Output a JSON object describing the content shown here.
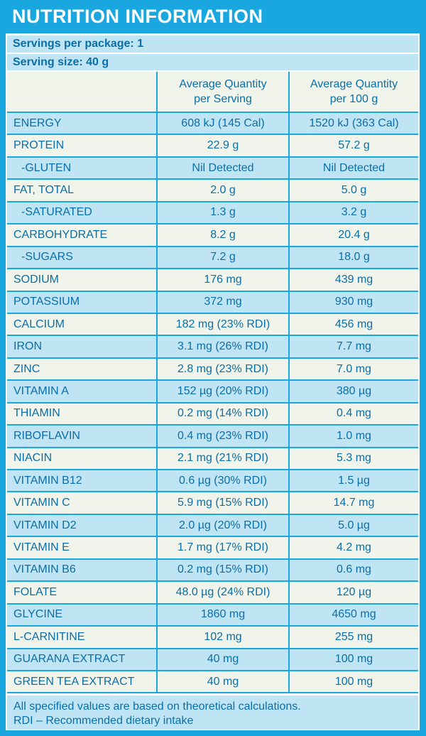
{
  "title": "NUTRITION INFORMATION",
  "servings_per_package": "Servings per package: 1",
  "serving_size": "Serving size: 40 g",
  "columns": {
    "per_serving_1": "Average Quantity",
    "per_serving_2": "per Serving",
    "per_100g_1": "Average Quantity",
    "per_100g_2": "per 100 g"
  },
  "rows": [
    {
      "name": "ENERGY",
      "per_serving": "608 kJ (145 Cal)",
      "per_100g": "1520 kJ (363 Cal)"
    },
    {
      "name": "PROTEIN",
      "per_serving": "22.9 g",
      "per_100g": "57.2 g"
    },
    {
      "name": "-GLUTEN",
      "per_serving": "Nil Detected",
      "per_100g": "Nil Detected",
      "sub": true
    },
    {
      "name": "FAT, TOTAL",
      "per_serving": "2.0 g",
      "per_100g": "5.0 g"
    },
    {
      "name": "-SATURATED",
      "per_serving": "1.3 g",
      "per_100g": "3.2 g",
      "sub": true
    },
    {
      "name": "CARBOHYDRATE",
      "per_serving": "8.2 g",
      "per_100g": "20.4 g"
    },
    {
      "name": "-SUGARS",
      "per_serving": "7.2 g",
      "per_100g": "18.0 g",
      "sub": true
    },
    {
      "name": "SODIUM",
      "per_serving": "176 mg",
      "per_100g": "439 mg"
    },
    {
      "name": "POTASSIUM",
      "per_serving": "372 mg",
      "per_100g": "930 mg"
    },
    {
      "name": "CALCIUM",
      "per_serving": "182 mg (23% RDI)",
      "per_100g": "456 mg"
    },
    {
      "name": "IRON",
      "per_serving": "3.1 mg (26% RDI)",
      "per_100g": "7.7 mg"
    },
    {
      "name": "ZINC",
      "per_serving": "2.8 mg (23% RDI)",
      "per_100g": "7.0 mg"
    },
    {
      "name": "VITAMIN A",
      "per_serving": "152 µg (20% RDI)",
      "per_100g": "380 µg"
    },
    {
      "name": "THIAMIN",
      "per_serving": "0.2 mg (14% RDI)",
      "per_100g": "0.4 mg"
    },
    {
      "name": "RIBOFLAVIN",
      "per_serving": "0.4 mg (23% RDI)",
      "per_100g": "1.0 mg"
    },
    {
      "name": "NIACIN",
      "per_serving": "2.1 mg (21% RDI)",
      "per_100g": "5.3 mg"
    },
    {
      "name": "VITAMIN B12",
      "per_serving": "0.6 µg (30% RDI)",
      "per_100g": "1.5 µg"
    },
    {
      "name": "VITAMIN C",
      "per_serving": "5.9 mg (15% RDI)",
      "per_100g": "14.7 mg"
    },
    {
      "name": "VITAMIN D2",
      "per_serving": "2.0 µg (20% RDI)",
      "per_100g": "5.0 µg"
    },
    {
      "name": "VITAMIN E",
      "per_serving": "1.7 mg (17% RDI)",
      "per_100g": "4.2 mg"
    },
    {
      "name": "VITAMIN B6",
      "per_serving": "0.2 mg (15% RDI)",
      "per_100g": "0.6 mg"
    },
    {
      "name": "FOLATE",
      "per_serving": "48.0 µg (24% RDI)",
      "per_100g": "120 µg"
    },
    {
      "name": "GLYCINE",
      "per_serving": "1860 mg",
      "per_100g": "4650 mg"
    },
    {
      "name": "L-CARNITINE",
      "per_serving": "102 mg",
      "per_100g": "255 mg"
    },
    {
      "name": "GUARANA EXTRACT",
      "per_serving": "40 mg",
      "per_100g": "100 mg"
    },
    {
      "name": "GREEN TEA EXTRACT",
      "per_serving": "40 mg",
      "per_100g": "100 mg"
    }
  ],
  "footnote_1": "All specified values are based on theoretical calculations.",
  "footnote_2": "RDI – Recommended dietary intake",
  "colors": {
    "brand_blue": "#1aa7e0",
    "light_blue": "#bfe5f5",
    "cream": "#f1f4ea",
    "text": "#0a6ea8"
  }
}
